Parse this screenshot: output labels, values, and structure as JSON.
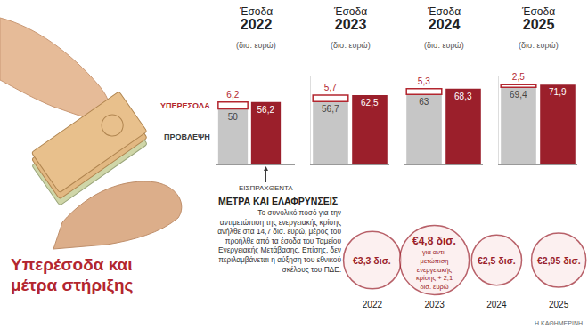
{
  "title": "Υπερέσοδα και μέτρα στήριξης",
  "source": "Η ΚΑΘΗΜΕΡΙΝΗ",
  "chart_data": [
    {
      "type": "bar",
      "title": "Έσοδα 2022",
      "subtitle": "(δισ. ευρώ)",
      "categories": [
        null,
        null
      ],
      "stacked": true,
      "data_labels": true,
      "tick_labels": false,
      "legend": "left",
      "ylim": [
        0,
        80
      ],
      "series": [
        {
          "name": "ΠΡΟΒΛΕΨΗ",
          "color": "#c6c6c6",
          "values": [
            50,
            null
          ]
        },
        {
          "name": "ΥΠΕΡΕΣΟΔΑ",
          "color": "#ffffff",
          "values": [
            6.2,
            null
          ],
          "value_labels": [
            "6,2",
            null
          ]
        },
        {
          "name": "ΕΙΣΠΡΑΧΘΕΝΤΑ",
          "color": "#9b1f2b",
          "values": [
            null,
            56.2
          ],
          "value_labels": [
            null,
            "56,2"
          ]
        }
      ]
    },
    {
      "type": "bar",
      "title": "Έσοδα 2023",
      "subtitle": "(δισ. ευρώ)",
      "categories": [
        null,
        null
      ],
      "stacked": true,
      "data_labels": true,
      "tick_labels": false,
      "ylim": [
        0,
        80
      ],
      "series": [
        {
          "color": "#c6c6c6",
          "values": [
            56.7,
            null
          ],
          "value_labels": [
            "56,7",
            null
          ]
        },
        {
          "color": "#ffffff",
          "values": [
            5.7,
            null
          ],
          "value_labels": [
            "5,7",
            null
          ]
        },
        {
          "color": "#9b1f2b",
          "values": [
            null,
            62.5
          ],
          "value_labels": [
            null,
            "62,5"
          ]
        }
      ]
    },
    {
      "type": "bar",
      "title": "Έσοδα 2024",
      "subtitle": "(δισ. ευρώ)",
      "categories": [
        null,
        null
      ],
      "stacked": true,
      "data_labels": true,
      "tick_labels": false,
      "ylim": [
        0,
        80
      ],
      "series": [
        {
          "color": "#c6c6c6",
          "values": [
            63,
            null
          ]
        },
        {
          "color": "#ffffff",
          "values": [
            5.3,
            null
          ],
          "value_labels": [
            "5,3",
            null
          ]
        },
        {
          "color": "#9b1f2b",
          "values": [
            null,
            68.3
          ],
          "value_labels": [
            null,
            "68,3"
          ]
        }
      ]
    },
    {
      "type": "bar",
      "title": "Έσοδα 2025",
      "subtitle": "(δισ. ευρώ)",
      "categories": [
        null,
        null
      ],
      "stacked": true,
      "data_labels": true,
      "tick_labels": false,
      "ylim": [
        0,
        80
      ],
      "series": [
        {
          "color": "#c6c6c6",
          "values": [
            69.4,
            null
          ],
          "value_labels": [
            "69,4",
            null
          ]
        },
        {
          "color": "#ffffff",
          "values": [
            2.5,
            null
          ],
          "value_labels": [
            "2,5",
            null
          ]
        },
        {
          "color": "#9b1f2b",
          "values": [
            null,
            71.9
          ],
          "value_labels": [
            null,
            "71,9"
          ]
        }
      ]
    },
    {
      "type": "scatter",
      "title": "ΜΕΤΡΑ ΚΑΙ ΕΛΑΦΡΥΝΣΕΙΣ",
      "subtitle": "Το συνολικό ποσό για την αντιμετώπιση της ενεργειακής κρίσης ανήλθε στα 14,7 δισ. ευρώ, μέρος του προήλθε από τα έσοδα του Ταμείου Ενεργειακής Μετάβασης. Επίσης, δεν περιλαμβάνεται η αύξηση του εθνικού σκέλους του ΠΔΕ.",
      "categories": [
        "2022",
        "2023",
        "2024",
        "2025"
      ],
      "values": [
        3.3,
        4.8,
        2.5,
        2.95
      ],
      "value_labels": [
        "€3,3 δισ.",
        "€4,8 δισ.",
        "€2,5 δισ.",
        "€2,95 δισ."
      ],
      "notes": [
        null,
        [
          "για αντι-",
          "μετώπιση",
          "ενεργειακής",
          "κρίσης + 2,1",
          "δισ. ευρώ"
        ],
        null,
        null
      ],
      "marker": "circle",
      "color": "#9b1f2b",
      "data_labels": true,
      "tick_labels": "x"
    }
  ]
}
